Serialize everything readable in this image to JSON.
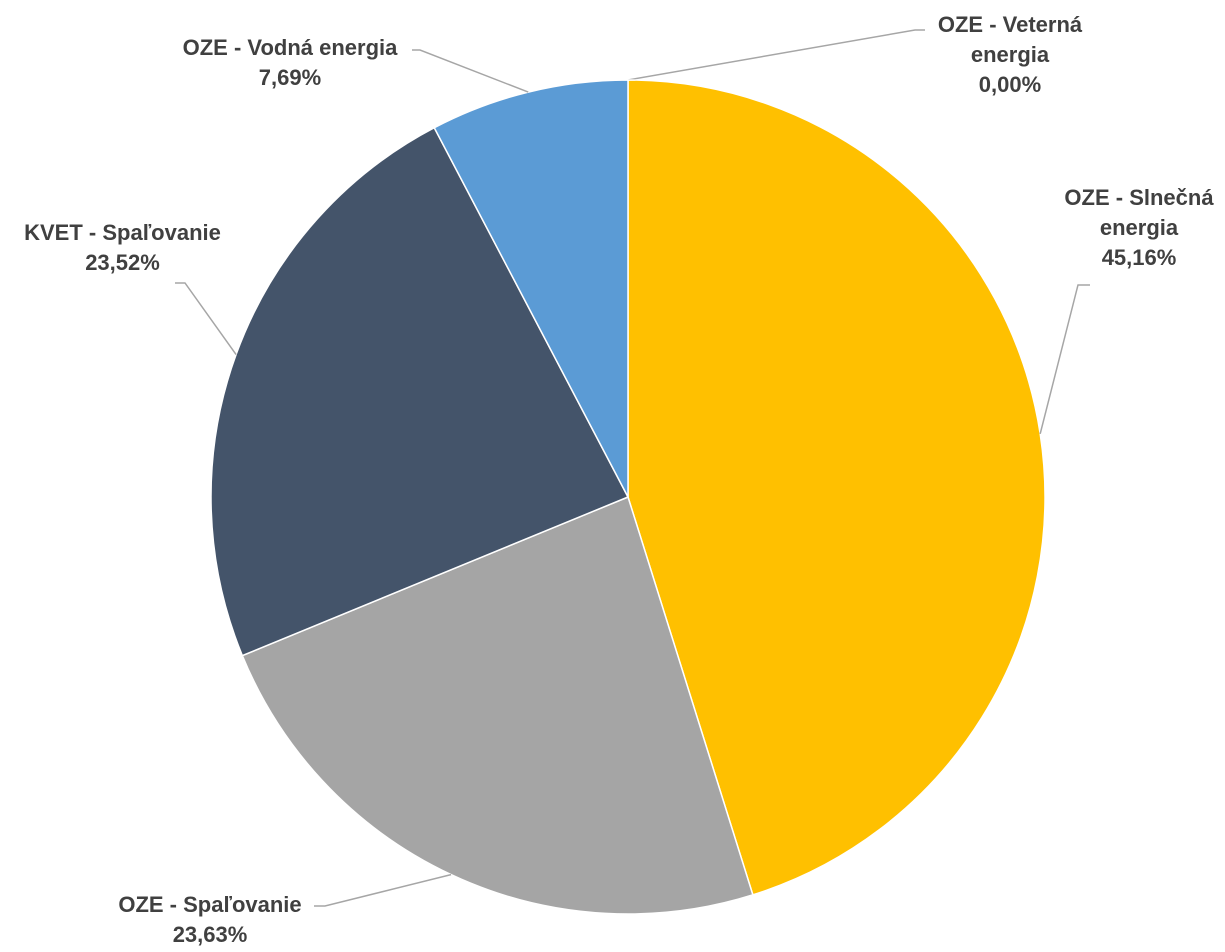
{
  "chart_data": {
    "type": "pie",
    "categories": [
      "OZE - Veterná energia",
      "OZE - Slnečná energia",
      "OZE - Spaľovanie",
      "KVET - Spaľovanie",
      "OZE - Vodná energia"
    ],
    "values": [
      0.0,
      45.16,
      23.63,
      23.52,
      7.69
    ],
    "value_labels": [
      "0,00%",
      "45,16%",
      "23,63%",
      "23,52%",
      "7,69%"
    ],
    "colors": [
      "#ed7d31",
      "#ffc000",
      "#a5a5a5",
      "#44546a",
      "#5b9bd5"
    ]
  }
}
